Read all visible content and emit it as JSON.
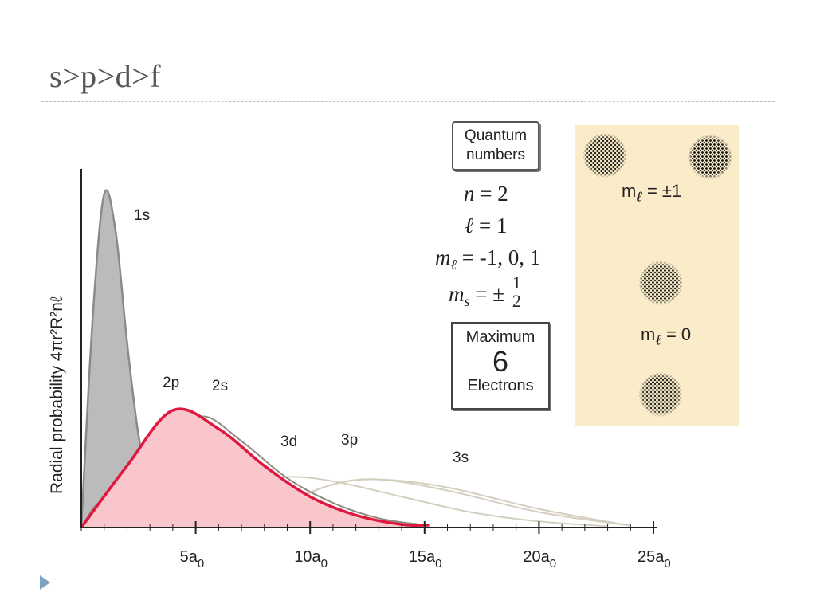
{
  "slide": {
    "title": "s>p>d>f"
  },
  "chart_data": {
    "type": "line",
    "ylabel": "Radial probability 4πr²R²nℓ",
    "xlabel": "",
    "x_ticks": [
      "5a0",
      "10a0",
      "15a0",
      "20a0",
      "25a0"
    ],
    "xlim": [
      0,
      25
    ],
    "ylim": [
      0,
      0.55
    ],
    "series": [
      {
        "name": "1s",
        "label_text": "1s",
        "color": "#8a8a8a",
        "fill": "#bbbbbb",
        "x": [
          0,
          0.5,
          1,
          1.5,
          2,
          2.5,
          3,
          3.5,
          4
        ],
        "y": [
          0,
          0.34,
          0.54,
          0.48,
          0.3,
          0.15,
          0.07,
          0.03,
          0
        ]
      },
      {
        "name": "2p",
        "label_text": "2p",
        "color": "#e0173f",
        "fill": "#f9c7cb",
        "x": [
          0,
          2,
          4,
          6,
          8,
          10,
          12,
          14,
          15.2
        ],
        "y": [
          0,
          0.1,
          0.19,
          0.16,
          0.1,
          0.05,
          0.02,
          0.005,
          0.004
        ]
      },
      {
        "name": "2s",
        "label_text": "2s",
        "color": "#8e8a80",
        "x": [
          0,
          0.8,
          1.6,
          2.5,
          4,
          5.3,
          7,
          9,
          11,
          13,
          15
        ],
        "y": [
          0,
          0.04,
          0.01,
          0.05,
          0.13,
          0.18,
          0.14,
          0.08,
          0.04,
          0.015,
          0.004
        ]
      },
      {
        "name": "3d",
        "label_text": "3d",
        "color": "#d5cfc0",
        "x": [
          0,
          3,
          5,
          7,
          9,
          11,
          14,
          17,
          20,
          23
        ],
        "y": [
          0,
          0.01,
          0.04,
          0.07,
          0.082,
          0.075,
          0.05,
          0.025,
          0.01,
          0.002
        ]
      },
      {
        "name": "3p",
        "label_text": "3p",
        "color": "#d5cfc0",
        "x": [
          0,
          2,
          3.5,
          5,
          7,
          9,
          11,
          13,
          16,
          20,
          24
        ],
        "y": [
          0,
          0.025,
          0.028,
          0.02,
          0.015,
          0.04,
          0.07,
          0.078,
          0.06,
          0.025,
          0.003
        ]
      },
      {
        "name": "3s",
        "label_text": "3s",
        "color": "#d5cfc0",
        "x": [
          0,
          0.8,
          1.6,
          3,
          4.5,
          6,
          7.5,
          9,
          11,
          13,
          16,
          20,
          24
        ],
        "y": [
          0,
          0.02,
          0.005,
          0.025,
          0.028,
          0.005,
          0.01,
          0.04,
          0.07,
          0.078,
          0.065,
          0.03,
          0.003
        ]
      }
    ]
  },
  "quantum": {
    "box_line1": "Quantum",
    "box_line2": "numbers",
    "n_symbol": "n",
    "n_eq": " = 2",
    "l_symbol": "ℓ",
    "l_eq": " = 1",
    "ml_symbol": "m",
    "ml_sub": "ℓ",
    "ml_eq": " = -1, 0, 1",
    "ms_symbol": "m",
    "ms_sub": "s",
    "ms_eq": " = ±",
    "ms_num": "1",
    "ms_den": "2"
  },
  "maximum": {
    "line1": "Maximum",
    "line2": "6",
    "line3": "Electrons"
  },
  "orbitals": {
    "ml_pm_label_m": "m",
    "ml_pm_sub": "ℓ",
    "ml_pm_value": " = ±1",
    "ml_zero_label_m": "m",
    "ml_zero_sub": "ℓ",
    "ml_zero_value": " = 0"
  }
}
